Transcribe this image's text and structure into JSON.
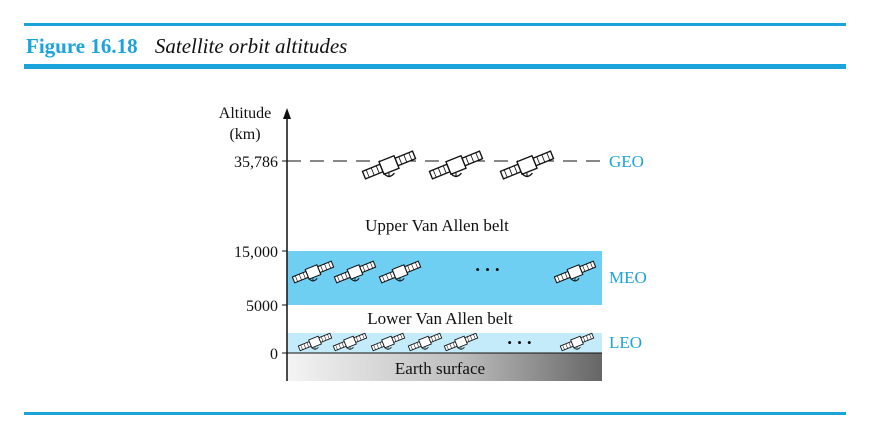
{
  "figure": {
    "number": "Figure 16.18",
    "title": "Satellite orbit altitudes"
  },
  "axis": {
    "label_line1": "Altitude",
    "label_line2": "(km)",
    "ticks": [
      "35,786",
      "15,000",
      "5000",
      "0"
    ]
  },
  "orbits": {
    "geo": "GEO",
    "meo": "MEO",
    "leo": "LEO"
  },
  "belts": {
    "upper": "Upper Van Allen belt",
    "lower": "Lower Van Allen belt"
  },
  "earth": "Earth surface",
  "ellipsis": "• • •",
  "colors": {
    "accent": "#1ba3dc",
    "meo_band": "#6fcff3",
    "leo_band": "#c4ebf9"
  },
  "icons": {
    "satellite": "satellite-icon",
    "axis_arrow": "arrow-up-icon"
  }
}
